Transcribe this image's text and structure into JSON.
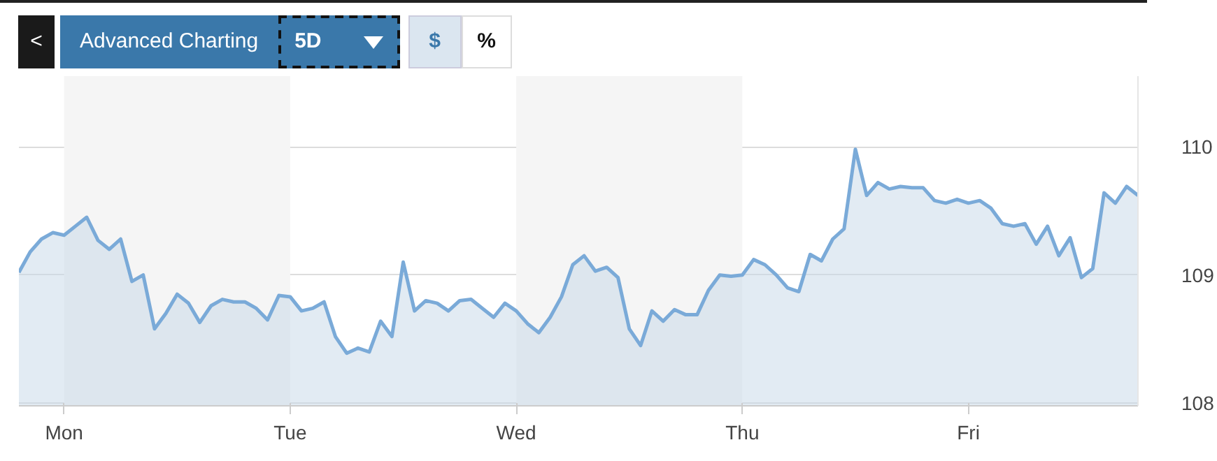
{
  "chart_data": {
    "type": "area",
    "annotations": [
      "<",
      "Advanced Charting",
      "5D",
      "$",
      "%"
    ],
    "categories": [
      null,
      null,
      null,
      null,
      "Mon",
      null,
      null,
      null,
      null,
      null,
      null,
      null,
      null,
      null,
      null,
      null,
      null,
      null,
      null,
      null,
      null,
      null,
      null,
      null,
      "Tue",
      null,
      null,
      null,
      null,
      null,
      null,
      null,
      null,
      null,
      null,
      null,
      null,
      null,
      null,
      null,
      null,
      null,
      null,
      null,
      "Wed",
      null,
      null,
      null,
      null,
      null,
      null,
      null,
      null,
      null,
      null,
      null,
      null,
      null,
      null,
      null,
      null,
      null,
      null,
      null,
      "Thu",
      null,
      null,
      null,
      null,
      null,
      null,
      null,
      null,
      null,
      null,
      null,
      null,
      null,
      null,
      null,
      null,
      null,
      null,
      null,
      "Fri",
      null,
      null,
      null,
      null,
      null,
      null,
      null,
      null,
      null,
      null,
      null,
      null,
      null,
      null,
      null
    ],
    "series": [
      {
        "color": "#7aaad8",
        "values": [
          109.02,
          109.18,
          109.28,
          109.33,
          109.31,
          109.38,
          109.45,
          109.27,
          109.2,
          109.28,
          108.95,
          109.0,
          108.58,
          108.7,
          108.85,
          108.78,
          108.63,
          108.76,
          108.81,
          108.79,
          108.79,
          108.74,
          108.65,
          108.84,
          108.83,
          108.72,
          108.74,
          108.79,
          108.52,
          108.39,
          108.43,
          108.4,
          108.64,
          108.52,
          109.1,
          108.72,
          108.8,
          108.78,
          108.72,
          108.8,
          108.81,
          108.74,
          108.67,
          108.78,
          108.72,
          108.62,
          108.55,
          108.67,
          108.83,
          109.08,
          109.15,
          109.03,
          109.06,
          108.98,
          108.58,
          108.45,
          108.72,
          108.64,
          108.73,
          108.69,
          108.69,
          108.88,
          109.0,
          108.99,
          109.0,
          109.12,
          109.08,
          109.0,
          108.9,
          108.87,
          109.16,
          109.11,
          109.28,
          109.36,
          109.98,
          109.62,
          109.72,
          109.67,
          109.69,
          109.68,
          109.68,
          109.58,
          109.56,
          109.59,
          109.56,
          109.58,
          109.52,
          109.4,
          109.38,
          109.4,
          109.24,
          109.38,
          109.15,
          109.29,
          108.98,
          109.05,
          109.64,
          109.56,
          109.69,
          109.62
        ]
      }
    ],
    "ylim": [
      107.98,
      110.55
    ],
    "yticks": [
      108,
      109,
      110
    ],
    "grid": "y",
    "bands": [
      {
        "axis": "x",
        "from": "Mon",
        "to": "Tue",
        "color": "#f5f5f5"
      },
      {
        "axis": "x",
        "from": "Wed",
        "to": "Thu",
        "color": "#f5f5f5"
      }
    ]
  }
}
